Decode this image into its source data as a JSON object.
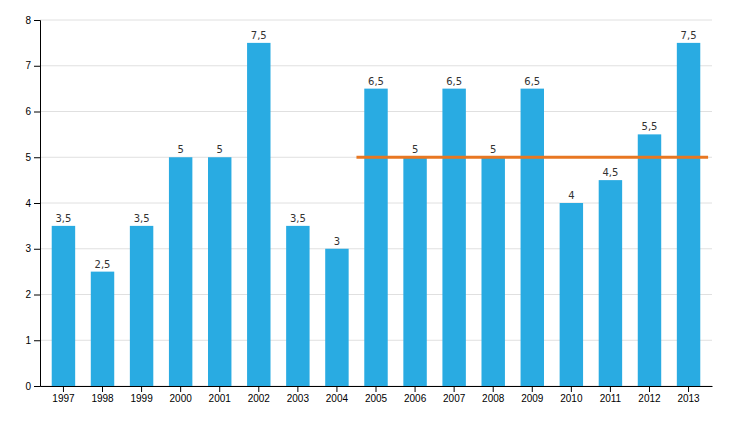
{
  "chart_data": {
    "type": "bar",
    "categories": [
      "1997",
      "1998",
      "1999",
      "2000",
      "2001",
      "2002",
      "2003",
      "2004",
      "2005",
      "2006",
      "2007",
      "2008",
      "2009",
      "2010",
      "2011",
      "2012",
      "2013"
    ],
    "series": [
      {
        "type": "bar",
        "color": "#29ABE2",
        "values": [
          3.5,
          2.5,
          3.5,
          5.0,
          5.0,
          7.5,
          3.5,
          3.0,
          6.5,
          5.0,
          6.5,
          5.0,
          6.5,
          4.0,
          4.5,
          5.5,
          7.5
        ],
        "value_labels": [
          "3,5",
          "2,5",
          "3,5",
          "5",
          "5",
          "7,5",
          "3,5",
          "3",
          "6,5",
          "5",
          "6,5",
          "5",
          "6,5",
          "4",
          "4,5",
          "5,5",
          "7,5"
        ]
      },
      {
        "type": "line",
        "color": "#E87722",
        "values": [
          null,
          null,
          null,
          null,
          null,
          null,
          null,
          null,
          5.0,
          5.0,
          5.0,
          5.0,
          5.0,
          5.0,
          5.0,
          5.0,
          5.0
        ]
      }
    ],
    "data_labels": true,
    "ylim": [
      0,
      8
    ],
    "yticks": [
      0,
      1,
      2,
      3,
      4,
      5,
      6,
      7,
      8
    ],
    "grid": true
  }
}
